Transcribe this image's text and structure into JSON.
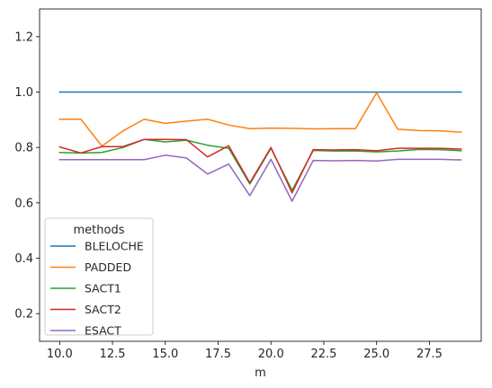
{
  "chart_data": {
    "type": "line",
    "title": "",
    "xlabel": "m",
    "ylabel": "",
    "xlim": [
      9.05,
      29.95
    ],
    "ylim": [
      0.1,
      1.3
    ],
    "xticks": [
      10.0,
      12.5,
      15.0,
      17.5,
      20.0,
      22.5,
      25.0,
      27.5
    ],
    "xtick_labels": [
      "10.0",
      "12.5",
      "15.0",
      "17.5",
      "20.0",
      "22.5",
      "25.0",
      "27.5"
    ],
    "yticks": [
      0.2,
      0.4,
      0.6,
      0.8,
      1.0,
      1.2
    ],
    "ytick_labels": [
      "0.2",
      "0.4",
      "0.6",
      "0.8",
      "1.0",
      "1.2"
    ],
    "grid": false,
    "legend_title": "methods",
    "legend_position": "lower-left",
    "x": [
      10,
      11,
      12,
      13,
      14,
      15,
      16,
      17,
      18,
      19,
      20,
      21,
      22,
      23,
      24,
      25,
      26,
      27,
      28,
      29
    ],
    "series": [
      {
        "name": "BLELOCHE",
        "color": "#1f77b4",
        "values": [
          1.0,
          1.0,
          1.0,
          1.0,
          1.0,
          1.0,
          1.0,
          1.0,
          1.0,
          1.0,
          1.0,
          1.0,
          1.0,
          1.0,
          1.0,
          1.0,
          1.0,
          1.0,
          1.0,
          1.0
        ]
      },
      {
        "name": "PADDED",
        "color": "#ff7f0e",
        "values": [
          0.902,
          0.902,
          0.805,
          0.86,
          0.902,
          0.887,
          0.895,
          0.902,
          0.881,
          0.868,
          0.87,
          0.869,
          0.867,
          0.868,
          0.868,
          0.997,
          0.866,
          0.861,
          0.86,
          0.855
        ]
      },
      {
        "name": "SACT1",
        "color": "#2ca02c",
        "values": [
          0.782,
          0.78,
          0.782,
          0.8,
          0.829,
          0.82,
          0.826,
          0.808,
          0.797,
          0.668,
          0.797,
          0.645,
          0.789,
          0.787,
          0.787,
          0.784,
          0.787,
          0.793,
          0.792,
          0.788
        ]
      },
      {
        "name": "SACT2",
        "color": "#d62728",
        "values": [
          0.802,
          0.78,
          0.803,
          0.803,
          0.829,
          0.829,
          0.828,
          0.766,
          0.806,
          0.672,
          0.8,
          0.636,
          0.792,
          0.791,
          0.792,
          0.788,
          0.797,
          0.797,
          0.797,
          0.794
        ]
      },
      {
        "name": "ESACT",
        "color": "#9467bd",
        "values": [
          0.756,
          0.756,
          0.756,
          0.756,
          0.756,
          0.772,
          0.762,
          0.704,
          0.74,
          0.626,
          0.757,
          0.606,
          0.753,
          0.752,
          0.753,
          0.751,
          0.757,
          0.757,
          0.757,
          0.755
        ]
      }
    ]
  }
}
